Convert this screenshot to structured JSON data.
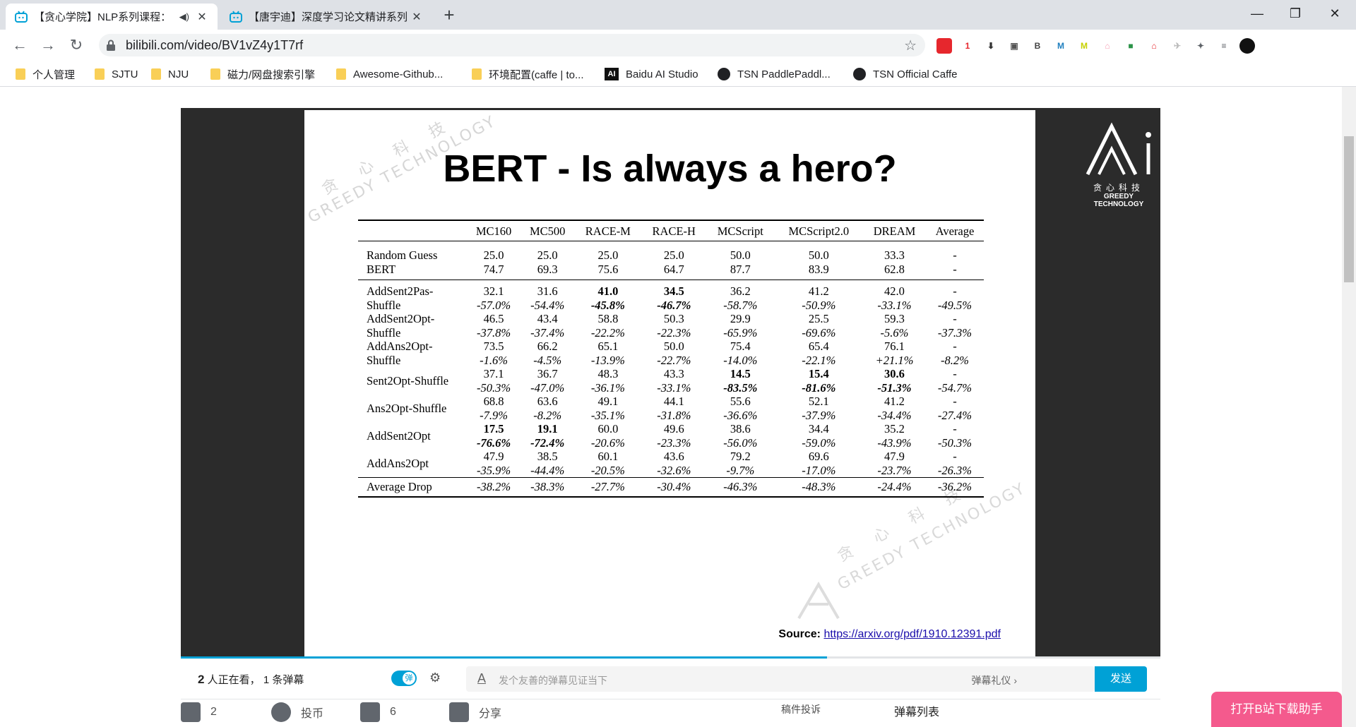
{
  "browser": {
    "tabs": [
      {
        "title": "【贪心学院】NLP系列课程：",
        "audio_icon": "speaker-icon",
        "active": true
      },
      {
        "title": "【唐宇迪】深度学习论文精讲系列",
        "active": false
      }
    ],
    "new_tab_symbol": "+",
    "window_controls": {
      "minimize": "—",
      "restore": "❐",
      "close": "✕"
    },
    "url": "bilibili.com/video/BV1vZ4y1T7rf",
    "extensions": [
      {
        "icon": "youdao-icon",
        "text": "",
        "color": "#e6272d"
      },
      {
        "icon": "ext-red-badge-icon",
        "text": "1",
        "color": "#e6272d"
      },
      {
        "icon": "download-icon",
        "text": "⬇",
        "color": "#333333"
      },
      {
        "icon": "screenshot-icon",
        "text": "▣",
        "color": "#555555"
      },
      {
        "icon": "base64-icon",
        "text": "B",
        "color": "#444444"
      },
      {
        "icon": "mendeley-icon",
        "text": "M",
        "color": "#1f7fbf"
      },
      {
        "icon": "m-yellow-icon",
        "text": "M",
        "color": "#c6d000"
      },
      {
        "icon": "bilibili-helper-icon",
        "text": "⌂",
        "color": "#f7a0b5"
      },
      {
        "icon": "colorful-icon",
        "text": "■",
        "color": "#2b9348"
      },
      {
        "icon": "cart-icon",
        "text": "⌂",
        "color": "#e6272d"
      },
      {
        "icon": "bird-icon",
        "text": "✈",
        "color": "#bbbbbb"
      },
      {
        "icon": "puzzle-icon",
        "text": "✦",
        "color": "#5f6368"
      },
      {
        "icon": "playlist-icon",
        "text": "≡",
        "color": "#5f6368"
      },
      {
        "icon": "profile-avatar-icon",
        "text": "",
        "color": "#111111"
      }
    ],
    "bookmarks": [
      {
        "label": "个人管理",
        "icon": "folder-icon"
      },
      {
        "label": "SJTU",
        "icon": "folder-icon"
      },
      {
        "label": "NJU",
        "icon": "folder-icon"
      },
      {
        "label": "磁力/网盘搜索引擎",
        "icon": "folder-icon"
      },
      {
        "label": "Awesome-Github...",
        "icon": "folder-icon"
      },
      {
        "label": "环境配置(caffe | to...",
        "icon": "folder-icon"
      },
      {
        "label": "Baidu AI Studio",
        "icon": "ai-studio-icon",
        "badge": "AI"
      },
      {
        "label": "TSN PaddlePaddl...",
        "icon": "github-icon"
      },
      {
        "label": "TSN Official Caffe",
        "icon": "github-icon"
      }
    ]
  },
  "slide": {
    "title": "BERT - Is always a hero?",
    "watermark_cn": "贪 心 科 技",
    "watermark_en": "GREEDY TECHNOLOGY",
    "logo_cn": "贪心科技",
    "logo_en": "GREEDY TECHNOLOGY",
    "table": {
      "headers": [
        "",
        "MC160",
        "MC500",
        "RACE-M",
        "RACE-H",
        "MCScript",
        "MCScript2.0",
        "DREAM",
        "Average"
      ],
      "baseline_rows": [
        {
          "label": "Random Guess",
          "values": [
            "25.0",
            "25.0",
            "25.0",
            "25.0",
            "50.0",
            "50.0",
            "33.3",
            "-"
          ]
        },
        {
          "label": "BERT",
          "values": [
            "74.7",
            "69.3",
            "75.6",
            "64.7",
            "87.7",
            "83.9",
            "62.8",
            "-"
          ]
        }
      ],
      "attack_rows": [
        {
          "label": "AddSent2Pas-Shuffle",
          "values": [
            "32.1",
            "31.6",
            "41.0",
            "34.5",
            "36.2",
            "41.2",
            "42.0",
            "-"
          ],
          "drops": [
            "-57.0%",
            "-54.4%",
            "-45.8%",
            "-46.7%",
            "-58.7%",
            "-50.9%",
            "-33.1%",
            "-49.5%"
          ],
          "bold": [
            2,
            3
          ]
        },
        {
          "label": "AddSent2Opt-Shuffle",
          "values": [
            "46.5",
            "43.4",
            "58.8",
            "50.3",
            "29.9",
            "25.5",
            "59.3",
            "-"
          ],
          "drops": [
            "-37.8%",
            "-37.4%",
            "-22.2%",
            "-22.3%",
            "-65.9%",
            "-69.6%",
            "-5.6%",
            "-37.3%"
          ],
          "bold": []
        },
        {
          "label": "AddAns2Opt-Shuffle",
          "values": [
            "73.5",
            "66.2",
            "65.1",
            "50.0",
            "75.4",
            "65.4",
            "76.1",
            "-"
          ],
          "drops": [
            "-1.6%",
            "-4.5%",
            "-13.9%",
            "-22.7%",
            "-14.0%",
            "-22.1%",
            "+21.1%",
            "-8.2%"
          ],
          "bold": []
        },
        {
          "label": "Sent2Opt-Shuffle",
          "values": [
            "37.1",
            "36.7",
            "48.3",
            "43.3",
            "14.5",
            "15.4",
            "30.6",
            "-"
          ],
          "drops": [
            "-50.3%",
            "-47.0%",
            "-36.1%",
            "-33.1%",
            "-83.5%",
            "-81.6%",
            "-51.3%",
            "-54.7%"
          ],
          "bold": [
            4,
            5,
            6
          ]
        },
        {
          "label": "Ans2Opt-Shuffle",
          "values": [
            "68.8",
            "63.6",
            "49.1",
            "44.1",
            "55.6",
            "52.1",
            "41.2",
            "-"
          ],
          "drops": [
            "-7.9%",
            "-8.2%",
            "-35.1%",
            "-31.8%",
            "-36.6%",
            "-37.9%",
            "-34.4%",
            "-27.4%"
          ],
          "bold": []
        },
        {
          "label": "AddSent2Opt",
          "values": [
            "17.5",
            "19.1",
            "60.0",
            "49.6",
            "38.6",
            "34.4",
            "35.2",
            "-"
          ],
          "drops": [
            "-76.6%",
            "-72.4%",
            "-20.6%",
            "-23.3%",
            "-56.0%",
            "-59.0%",
            "-43.9%",
            "-50.3%"
          ],
          "bold": [
            0,
            1
          ]
        },
        {
          "label": "AddAns2Opt",
          "values": [
            "47.9",
            "38.5",
            "60.1",
            "43.6",
            "79.2",
            "69.6",
            "47.9",
            "-"
          ],
          "drops": [
            "-35.9%",
            "-44.4%",
            "-20.5%",
            "-32.6%",
            "-9.7%",
            "-17.0%",
            "-23.7%",
            "-26.3%"
          ],
          "bold": []
        }
      ],
      "average_row": {
        "label": "Average Drop",
        "values": [
          "-38.2%",
          "-38.3%",
          "-27.7%",
          "-30.4%",
          "-46.3%",
          "-48.3%",
          "-24.4%",
          "-36.2%"
        ]
      }
    },
    "source_label": "Source:",
    "source_link": "https://arxiv.org/pdf/1910.12391.pdf"
  },
  "player": {
    "progress": 0.66,
    "viewers_count": "2",
    "viewers_text": "人正在看，",
    "danmaku_count": "1 条弹幕",
    "danmaku_toggle": "弹",
    "input_placeholder": "发个友善的弹幕见证当下",
    "etiquette": "弹幕礼仪 ›",
    "send": "发送"
  },
  "actions": {
    "like": "2",
    "coin": "投币",
    "favorite": "6",
    "share": "分享",
    "report": "稿件投诉",
    "danmaku_list": "弹幕列表"
  },
  "helper_button": "打开B站下载助手",
  "colors": {
    "accent": "#00a1d6",
    "helper": "#f45a8d"
  }
}
